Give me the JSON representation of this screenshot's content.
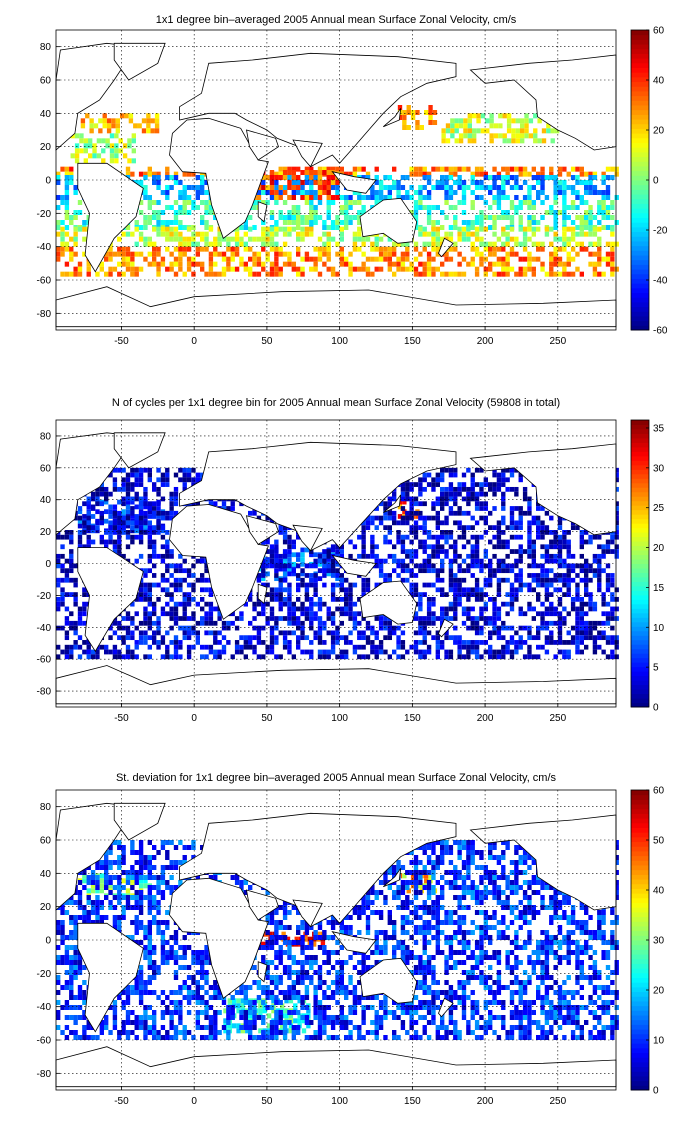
{
  "chart_data": [
    {
      "type": "heatmap",
      "title": "1x1 degree bin–averaged 2005 Annual mean Surface Zonal Velocity, cm/s",
      "xlim": [
        -95,
        290
      ],
      "ylim": [
        -90,
        90
      ],
      "xticks": [
        -50,
        0,
        50,
        100,
        150,
        200,
        250
      ],
      "yticks": [
        80,
        60,
        40,
        20,
        0,
        -20,
        -40,
        -60,
        -80
      ],
      "colorbar": {
        "min": -60,
        "max": 60,
        "ticks": [
          60,
          40,
          20,
          0,
          -20,
          -40,
          -60
        ]
      },
      "colormap": "jet",
      "grid": true,
      "zones": [
        {
          "lat": [
            40,
            28
          ],
          "lon": [
            -78,
            -25
          ],
          "value": 22
        },
        {
          "lat": [
            28,
            12
          ],
          "lon": [
            -85,
            -40
          ],
          "value": 5
        },
        {
          "lat": [
            45,
            30
          ],
          "lon": [
            140,
            170
          ],
          "value": 30
        },
        {
          "lat": [
            40,
            22
          ],
          "lon": [
            170,
            250
          ],
          "value": 10
        },
        {
          "lat": [
            8,
            4
          ],
          "lon": [
            -95,
            290
          ],
          "value": 30
        },
        {
          "lat": [
            3,
            -12
          ],
          "lon": [
            -95,
            290
          ],
          "value": -25
        },
        {
          "lat": [
            6,
            -10
          ],
          "lon": [
            40,
            100
          ],
          "value": 35
        },
        {
          "lat": [
            -12,
            -28
          ],
          "lon": [
            -95,
            290
          ],
          "value": -8
        },
        {
          "lat": [
            -28,
            -40
          ],
          "lon": [
            -95,
            290
          ],
          "value": 8
        },
        {
          "lat": [
            -40,
            -56
          ],
          "lon": [
            -95,
            290
          ],
          "value": 28
        }
      ]
    },
    {
      "type": "heatmap",
      "title": "N of cycles per 1x1 degree bin for 2005 Annual mean Surface Zonal Velocity (59808 in total)",
      "xlim": [
        -95,
        290
      ],
      "ylim": [
        -90,
        90
      ],
      "xticks": [
        -50,
        0,
        50,
        100,
        150,
        200,
        250
      ],
      "yticks": [
        80,
        60,
        40,
        20,
        0,
        -20,
        -40,
        -60,
        -80
      ],
      "colorbar": {
        "min": 0,
        "max": 36,
        "ticks": [
          35,
          30,
          25,
          20,
          15,
          10,
          5,
          0
        ]
      },
      "colormap": "jet",
      "grid": true,
      "zones": [
        {
          "lat": [
            40,
            20
          ],
          "lon": [
            -80,
            -20
          ],
          "value": 6
        },
        {
          "lat": [
            40,
            30
          ],
          "lon": [
            140,
            155
          ],
          "value": 28
        },
        {
          "lat": [
            10,
            -10
          ],
          "lon": [
            40,
            100
          ],
          "value": 8
        },
        {
          "lat": [
            60,
            -60
          ],
          "lon": [
            -95,
            290
          ],
          "value": 3
        }
      ]
    },
    {
      "type": "heatmap",
      "title": "St. deviation for 1x1 degree bin–averaged 2005 Annual mean Surface Zonal Velocity, cm/s",
      "xlim": [
        -95,
        290
      ],
      "ylim": [
        -90,
        90
      ],
      "xticks": [
        -50,
        0,
        50,
        100,
        150,
        200,
        250
      ],
      "yticks": [
        80,
        60,
        40,
        20,
        0,
        -20,
        -40,
        -60,
        -80
      ],
      "colorbar": {
        "min": 0,
        "max": 60,
        "ticks": [
          60,
          50,
          40,
          30,
          20,
          10,
          0
        ]
      },
      "colormap": "jet",
      "grid": true,
      "zones": [
        {
          "lat": [
            40,
            25
          ],
          "lon": [
            -80,
            -30
          ],
          "value": 30
        },
        {
          "lat": [
            40,
            30
          ],
          "lon": [
            140,
            165
          ],
          "value": 40
        },
        {
          "lat": [
            5,
            -3
          ],
          "lon": [
            45,
            90
          ],
          "value": 50
        },
        {
          "lat": [
            -35,
            -55
          ],
          "lon": [
            20,
            80
          ],
          "value": 25
        },
        {
          "lat": [
            60,
            -60
          ],
          "lon": [
            -95,
            290
          ],
          "value": 10
        }
      ]
    }
  ]
}
